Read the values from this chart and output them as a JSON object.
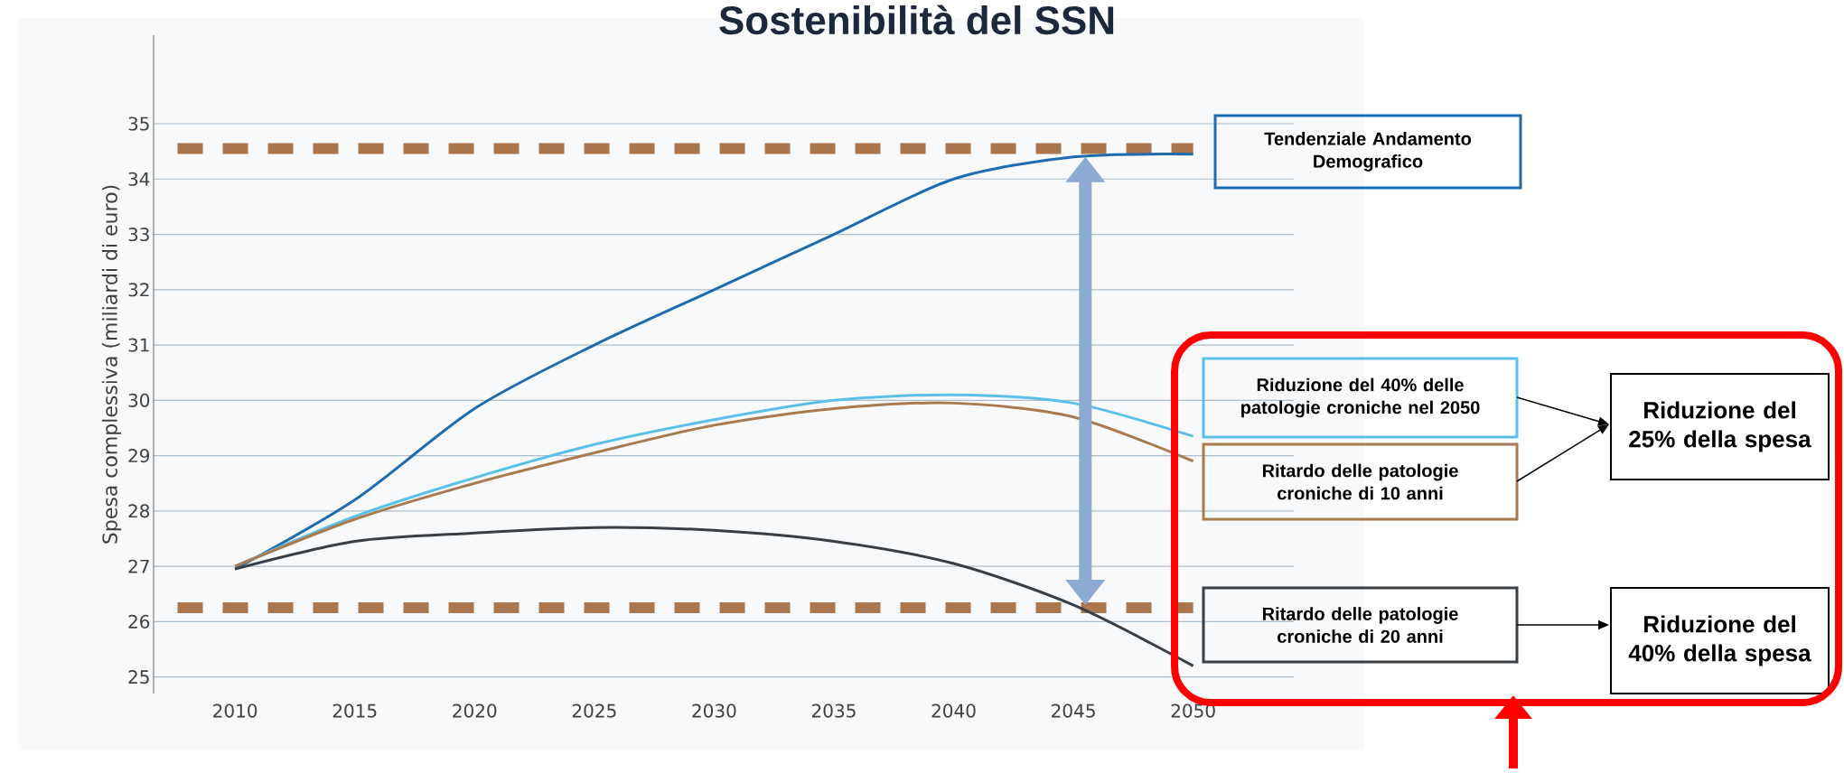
{
  "chart_data": {
    "type": "line",
    "title": "Sostenibilità del SSN",
    "ylabel": "Spesa complessiva (miliardi di euro)",
    "x": [
      2010,
      2015,
      2020,
      2025,
      2030,
      2035,
      2040,
      2045,
      2050
    ],
    "series": [
      {
        "name": "Tendenziale Andamento Demografico",
        "color": "#1f6bb0",
        "values": [
          26.95,
          28.2,
          29.85,
          31.0,
          32.0,
          33.0,
          34.0,
          34.4,
          34.45
        ]
      },
      {
        "name": "Riduzione del 40% delle patologie croniche nel 2050",
        "color": "#5bc0e8",
        "values": [
          27.0,
          27.9,
          28.6,
          29.2,
          29.65,
          30.0,
          30.1,
          29.95,
          29.35
        ]
      },
      {
        "name": "Ritardo delle patologie croniche di 10 anni",
        "color": "#a87a50",
        "values": [
          27.0,
          27.85,
          28.5,
          29.05,
          29.55,
          29.85,
          29.95,
          29.7,
          28.9
        ]
      },
      {
        "name": "Ritardo delle patologie croniche di 20 anni",
        "color": "#3a3f45",
        "values": [
          26.95,
          27.45,
          27.6,
          27.7,
          27.65,
          27.45,
          27.05,
          26.3,
          25.2
        ]
      }
    ],
    "xlim": [
      2006.6,
      2054.2
    ],
    "ylim": [
      24.7,
      36.6
    ],
    "xticks": [
      2010,
      2015,
      2020,
      2025,
      2030,
      2035,
      2040,
      2045,
      2050
    ],
    "yticks": [
      25,
      26,
      27,
      28,
      29,
      30,
      31,
      32,
      33,
      34,
      35
    ],
    "grid": "y",
    "marker": "none",
    "line_style": "solid",
    "ref_lines": [
      {
        "axis": "y",
        "value": 34.55,
        "color": "#a9764e",
        "line_style": "dashed"
      },
      {
        "axis": "y",
        "value": 26.25,
        "color": "#a9764e",
        "line_style": "dashed"
      }
    ],
    "annotations": [
      "**Riduzione del 25% della spesa**",
      "**Riduzione del 40% della spesa**"
    ]
  }
}
